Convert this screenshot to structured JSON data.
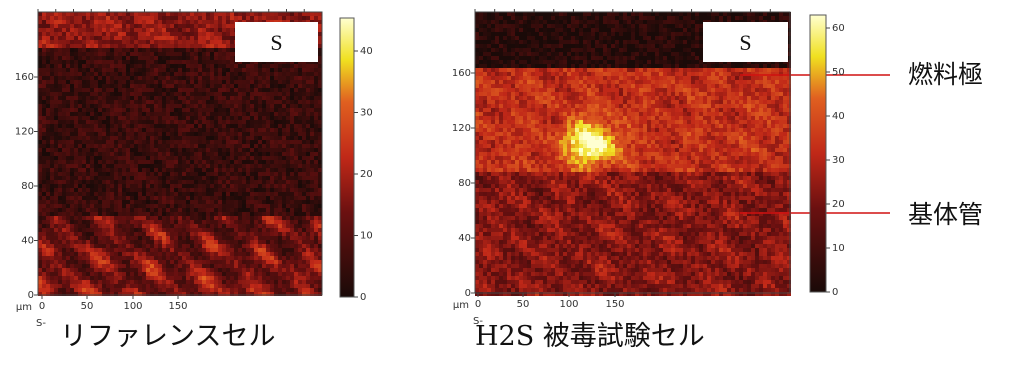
{
  "panels": [
    {
      "y_ticks": [
        "0",
        "40",
        "80",
        "120",
        "160"
      ],
      "x_ticks": [
        "0",
        "50",
        "100",
        "150"
      ],
      "unit": "μm",
      "axis_label": "S-",
      "element_label": "S",
      "colorbar_ticks": [
        "0",
        "10",
        "20",
        "30",
        "40"
      ],
      "caption": "リファレンスセル"
    },
    {
      "y_ticks": [
        "0",
        "40",
        "80",
        "120",
        "160"
      ],
      "x_ticks": [
        "0",
        "50",
        "100",
        "150"
      ],
      "unit": "μm",
      "axis_label": "S-",
      "element_label": "S",
      "colorbar_ticks": [
        "0",
        "10",
        "20",
        "30",
        "40",
        "50",
        "60"
      ],
      "caption": "H2S 被毒試験セル"
    }
  ],
  "annotations": [
    "燃料極",
    "基体管"
  ]
}
